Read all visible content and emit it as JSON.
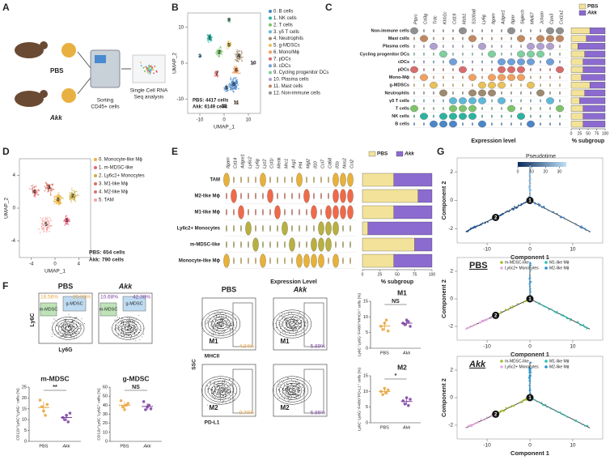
{
  "a": {
    "label": "A",
    "groups": [
      "PBS",
      "Akk"
    ],
    "sorting": [
      "Sorting",
      "CD45+ cells"
    ],
    "analysis": [
      "Single Cell RNA",
      "Seq analysis"
    ]
  },
  "b": {
    "label": "B",
    "x_label": "UMAP_1",
    "y_label": "UMAP_2",
    "xlim": [
      -15,
      15
    ],
    "ylim": [
      -14,
      14
    ],
    "xticks": [
      -10,
      0,
      10
    ],
    "yticks": [
      -10,
      0,
      10
    ],
    "clusters": [
      "0. B cells",
      "1. NK cells",
      "2. T cells",
      "3. γδ T cells",
      "4. Neutrophils",
      "5. g-MDSCs",
      "6. Mono/Mϕ",
      "7. pDCs",
      "8. cDCs",
      "9. Cycling progenitor DCs",
      "10. Plasma cells",
      "11. Mast cells",
      "12. Non-immune cells"
    ],
    "colors": [
      "#4a86c8",
      "#2bb3a0",
      "#7cc46a",
      "#5fb8d8",
      "#9e8a6e",
      "#e8c15a",
      "#f0a060",
      "#d86b6b",
      "#6f9fd8",
      "#7fcf9f",
      "#b0a0d0",
      "#c08860",
      "#909090"
    ],
    "map_labels": [
      "0",
      "1",
      "2",
      "3",
      "4",
      "5",
      "6",
      "7",
      "8",
      "9",
      "10",
      "11",
      "12"
    ],
    "counts": [
      "PBS: 4417 cells",
      "Akk: 6149 cells"
    ]
  },
  "c": {
    "label": "C",
    "x_label": "Expression level",
    "bar_label": "% subgroup",
    "xlim": [
      0,
      100
    ],
    "xticks": [
      0,
      25,
      50,
      75,
      100
    ],
    "genes": [
      "Ptprc",
      "Cd3g",
      "Trdc",
      "Klrb1c",
      "Cd19",
      "Mzb1",
      "S100a8",
      "Ly6g",
      "Itgam",
      "Adgre1",
      "Itgax",
      "Siglech",
      "Mki67",
      "Jchain",
      "Cpa3",
      "Col1a1"
    ],
    "cell_types": [
      "Non-immune cells",
      "Mast cells",
      "Plasma cells",
      "Cycling progenitor DCs",
      "cDCs",
      "pDCs",
      "Mono-Mϕ",
      "g-MDSCs",
      "Neutrophils",
      "γδ T cells",
      "T cells",
      "NK cells",
      "B cells"
    ],
    "series": [
      {
        "name": "PBS",
        "color": "#f3e39a",
        "values": [
          55,
          45,
          20,
          40,
          35,
          35,
          30,
          55,
          40,
          25,
          35,
          35,
          35
        ]
      },
      {
        "name": "Akk",
        "color": "#8b6bcf",
        "values": [
          45,
          55,
          80,
          60,
          65,
          65,
          70,
          45,
          60,
          75,
          65,
          65,
          65
        ]
      }
    ]
  },
  "d": {
    "label": "D",
    "x_label": "UMAP_1",
    "y_label": "UMAP_2",
    "xlim": [
      -6,
      6
    ],
    "ylim": [
      -6,
      6
    ],
    "xticks": [
      -4,
      0,
      4
    ],
    "yticks": [
      -4,
      0,
      4
    ],
    "clusters": [
      "0. Monocyte-like Mϕ",
      "1. m-MDSC-like",
      "2. Ly6c2+ Monocytes",
      "3. M1-like Mϕ",
      "4. M2-like Mϕ",
      "5. TAM"
    ],
    "colors": [
      "#e8b23a",
      "#e8607a",
      "#c8b040",
      "#d87060",
      "#e07070",
      "#f4a0a0"
    ],
    "map_labels": [
      "0",
      "1",
      "2",
      "3",
      "4",
      "5"
    ],
    "counts": [
      "PBS: 654 cells",
      "Akk: 790 cells"
    ]
  },
  "e": {
    "label": "E",
    "x_label": "Expression Level",
    "bar_label": "% subgroup",
    "xlim": [
      0,
      100
    ],
    "xticks": [
      0,
      25,
      50,
      75,
      100
    ],
    "genes": [
      "Itgam",
      "Cd14",
      "Adgre1",
      "Ly6c2",
      "Ly6g",
      "Lyz2",
      "Csf1r",
      "Mertk",
      "Mrc1",
      "Arg1",
      "Pf4",
      "Mgl2",
      "Il10",
      "Ccl7",
      "Cd68",
      "Il1b",
      "Nos2",
      "Ccl2"
    ],
    "cell_types": [
      "TAM",
      "M2-like Mϕ",
      "M1-like Mϕ",
      "Ly6c2+ Monocytes",
      "m-MDSC-like",
      "Monocyte-like Mϕ"
    ],
    "row_colors": [
      "#e8b23a",
      "#ef6a4a",
      "#ef6a4a",
      "#b8b040",
      "#b8b040",
      "#e8b23a"
    ],
    "series": [
      {
        "name": "PBS",
        "color": "#f3e39a",
        "values": [
          45,
          80,
          45,
          8,
          75,
          45
        ]
      },
      {
        "name": "Akk",
        "color": "#8b6bcf",
        "values": [
          55,
          20,
          55,
          92,
          25,
          55
        ]
      }
    ]
  },
  "f": {
    "label": "F",
    "gate_titles": [
      "PBS",
      "Akk"
    ],
    "gate_axes": [
      "Ly6C",
      "Ly6G"
    ],
    "gate_names": [
      "m-MDSC",
      "g-MDSC"
    ],
    "gate_percents": [
      {
        "text": "16.56%",
        "color": "#e8a33b"
      },
      {
        "text": "35.33%",
        "color": "#e8a33b"
      },
      {
        "text": "10.68%",
        "color": "#7b3fa0"
      },
      {
        "text": "42.38%",
        "color": "#7b3fa0"
      }
    ],
    "mac_titles": [
      "PBS",
      "Akk"
    ],
    "mac_names": [
      "M1",
      "M1",
      "M2",
      "M2"
    ],
    "mac_axes": [
      "MHCII",
      "PD-L1",
      "SSC"
    ],
    "mac_percents": [
      {
        "text": "4.94%",
        "color": "#e8a33b"
      },
      {
        "text": "5.89%",
        "color": "#7b3fa0"
      },
      {
        "text": "9.70%",
        "color": "#e8a33b"
      },
      {
        "text": "6.86%",
        "color": "#7b3fa0"
      }
    ],
    "dots": [
      {
        "title": "m-MDSC",
        "sig": "**",
        "y_label": "CD11b⁺Ly6C⁺Ly6G⁻ cells (%)",
        "ylim": [
          0,
          25
        ],
        "yticks": [
          0,
          5,
          10,
          15,
          20,
          25
        ],
        "groups": [
          {
            "name": "PBS",
            "color": "#e8a33b",
            "values": [
              19,
              16,
              14,
              12,
              17
            ]
          },
          {
            "name": "Akk",
            "color": "#7b3fa0",
            "values": [
              11,
              10,
              12,
              9,
              13
            ]
          }
        ]
      },
      {
        "title": "g-MDSC",
        "sig": "NS",
        "y_label": "CD11b⁺Ly6C⁻Ly6G⁺ cells (%)",
        "ylim": [
          0,
          60
        ],
        "yticks": [
          0,
          10,
          20,
          30,
          40,
          50,
          60
        ],
        "groups": [
          {
            "name": "PBS",
            "color": "#e8a33b",
            "values": [
              45,
              38,
              35,
              40,
              42
            ]
          },
          {
            "name": "Akk",
            "color": "#7b3fa0",
            "values": [
              44,
              35,
              38,
              40,
              36
            ]
          }
        ]
      },
      {
        "title": "M1",
        "sig": "NS",
        "y_label": "Ly6C⁻Ly6G⁻F4/80⁺MHCII⁺ cells (%)",
        "ylim": [
          0,
          15
        ],
        "yticks": [
          0,
          5,
          10,
          15
        ],
        "groups": [
          {
            "name": "PBS",
            "color": "#e8a33b",
            "values": [
              7,
              6,
              8,
              9,
              5.5
            ]
          },
          {
            "name": "Akk",
            "color": "#7b3fa0",
            "values": [
              8,
              7.5,
              9,
              8.5,
              7
            ]
          }
        ]
      },
      {
        "title": "M2",
        "sig": "*",
        "y_label": "Ly6C⁻Ly6G⁻F4/80⁺PD-L1⁺ cells (%)",
        "ylim": [
          0,
          15
        ],
        "yticks": [
          0,
          5,
          10,
          15
        ],
        "groups": [
          {
            "name": "PBS",
            "color": "#e8a33b",
            "values": [
              10,
              9,
              11,
              9.5,
              10.5
            ]
          },
          {
            "name": "Akk",
            "color": "#7b3fa0",
            "values": [
              7,
              6,
              8,
              5.5,
              7.5
            ]
          }
        ]
      }
    ]
  },
  "g": {
    "label": "G",
    "colorbar_title": "Pseudotime",
    "colorbar_ticks": [
      0,
      10,
      20,
      30
    ],
    "colorbar_lim": [
      0,
      35
    ],
    "x_label": "Component 1",
    "y_label": "Component 2",
    "xlim": [
      -17,
      17
    ],
    "ylim": [
      -3,
      3
    ],
    "xticks": [
      -10,
      0,
      10
    ],
    "yticks": [
      -2,
      0,
      2
    ],
    "nodes": [
      "1",
      "2"
    ],
    "titles": [
      "PBS",
      "Akk"
    ],
    "legend": [
      "m-MDSC-like",
      "M1-like Mϕ",
      "Ly6c2+ Monocytes",
      "M2-like Mϕ"
    ],
    "legend_colors": [
      "#a0c020",
      "#28c0b0",
      "#e8a8e0",
      "#2090d0"
    ]
  }
}
